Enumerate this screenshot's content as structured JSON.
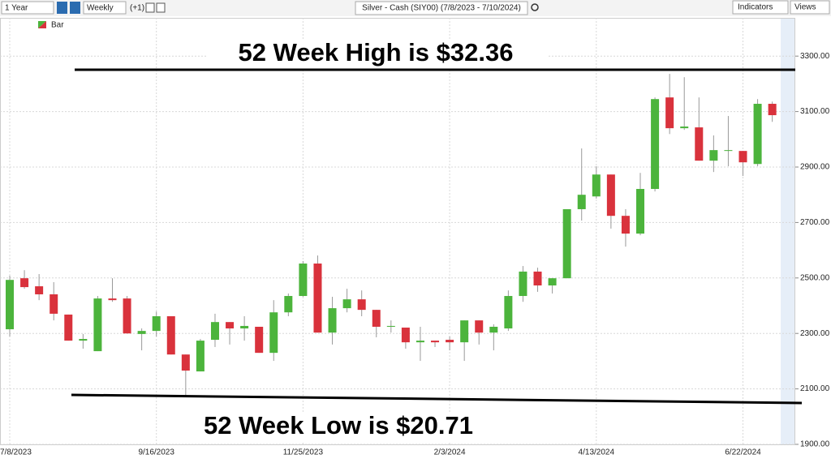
{
  "toolbar": {
    "range": "1 Year",
    "interval": "Weekly",
    "offset": "(+1)",
    "symbol": "Silver - Cash (SIY00) (7/8/2023 - 7/10/2024)",
    "indicators": "Indicators",
    "views": "Views"
  },
  "chart_data": {
    "type": "candlestick",
    "legend": "Bar",
    "annotations": [
      "52 Week High is $32.36",
      "52 Week Low is $20.71"
    ],
    "categories": [
      "7/8/2023",
      null,
      null,
      null,
      null,
      null,
      null,
      null,
      null,
      null,
      "9/16/2023",
      null,
      null,
      null,
      null,
      null,
      null,
      null,
      null,
      null,
      "11/25/2023",
      null,
      null,
      null,
      null,
      null,
      null,
      null,
      null,
      null,
      "2/3/2024",
      null,
      null,
      null,
      null,
      null,
      null,
      null,
      null,
      null,
      "4/13/2024",
      null,
      null,
      null,
      null,
      null,
      null,
      null,
      null,
      null,
      "6/22/2024",
      null,
      null
    ],
    "open": [
      2315,
      2499,
      2470,
      2441,
      2368,
      2274,
      2236,
      2426,
      2426,
      2298,
      2309,
      2362,
      2224,
      2163,
      2277,
      2341,
      2318,
      2324,
      2230,
      2376,
      2435,
      2552,
      2303,
      2391,
      2423,
      2385,
      2324,
      2321,
      2268,
      2274,
      2277,
      2268,
      2347,
      2303,
      2318,
      2435,
      2523,
      2473,
      2499,
      2748,
      2794,
      2873,
      2724,
      2660,
      2821,
      3151,
      3040,
      3043,
      2923,
      2958,
      2958,
      2911,
      3128
    ],
    "high": [
      2508,
      2528,
      2514,
      2485,
      2368,
      2298,
      2435,
      2499,
      2435,
      2318,
      2379,
      2362,
      2224,
      2280,
      2371,
      2341,
      2362,
      2324,
      2420,
      2444,
      2561,
      2581,
      2432,
      2461,
      2455,
      2385,
      2347,
      2321,
      2324,
      2274,
      2289,
      2347,
      2347,
      2333,
      2455,
      2543,
      2537,
      2499,
      2748,
      2967,
      2903,
      2873,
      2748,
      2879,
      3151,
      3236,
      3224,
      3151,
      3014,
      3084,
      2958,
      3145,
      3136
    ],
    "low": [
      2289,
      2461,
      2420,
      2347,
      2274,
      2245,
      2236,
      2414,
      2300,
      2239,
      2289,
      2224,
      2071,
      2163,
      2251,
      2260,
      2274,
      2230,
      2201,
      2362,
      2432,
      2303,
      2260,
      2376,
      2362,
      2286,
      2303,
      2245,
      2201,
      2251,
      2239,
      2201,
      2260,
      2239,
      2309,
      2414,
      2450,
      2444,
      2499,
      2707,
      2786,
      2678,
      2613,
      2654,
      2812,
      3019,
      3034,
      2923,
      2882,
      2903,
      2868,
      2903,
      3063
    ],
    "close": [
      2493,
      2467,
      2441,
      2371,
      2274,
      2280,
      2426,
      2420,
      2300,
      2309,
      2362,
      2224,
      2166,
      2274,
      2341,
      2318,
      2327,
      2230,
      2376,
      2435,
      2552,
      2303,
      2391,
      2423,
      2385,
      2324,
      2327,
      2268,
      2274,
      2268,
      2268,
      2347,
      2303,
      2324,
      2435,
      2523,
      2473,
      2499,
      2748,
      2800,
      2873,
      2724,
      2660,
      2821,
      3145,
      3040,
      3046,
      2923,
      2961,
      2961,
      2917,
      3128,
      3087
    ],
    "up_color": "#4cb43c",
    "down_color": "#d9323c",
    "ylim": [
      1900,
      3438
    ],
    "yticks": [
      {
        "value": 1900,
        "label": "1900.00"
      },
      {
        "value": 2100,
        "label": "2100.00"
      },
      {
        "value": 2300,
        "label": "2300.00"
      },
      {
        "value": 2500,
        "label": "2500.00"
      },
      {
        "value": 2700,
        "label": "2700.00"
      },
      {
        "value": 2900,
        "label": "2900.00"
      },
      {
        "value": 3100,
        "label": "3100.00"
      },
      {
        "value": 3300,
        "label": "3300.00"
      }
    ],
    "grid": true
  }
}
